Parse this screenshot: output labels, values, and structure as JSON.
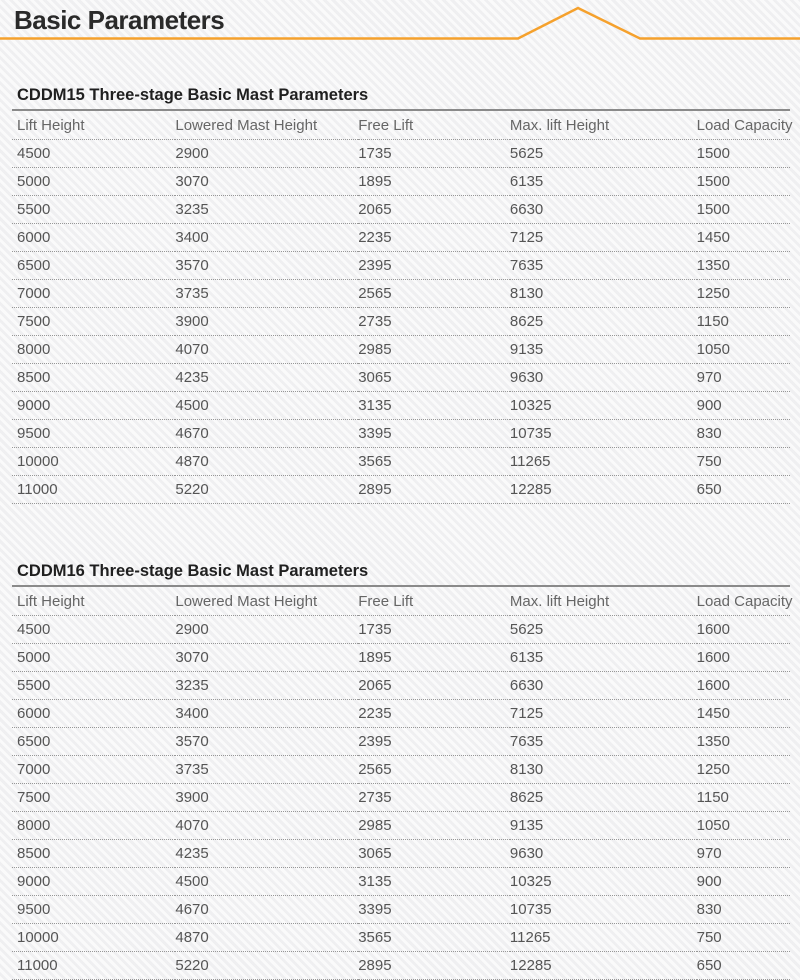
{
  "page": {
    "title": "Basic Parameters"
  },
  "colors": {
    "accent": "#F5A12D",
    "page_title_text": "#2A2A2A",
    "table_title_text": "#1F1F1F",
    "header_text": "#666666",
    "cell_text": "#555555",
    "solid_rule": "#8A8A8A",
    "dotted_rule": "#979797",
    "background": "#F6F6F7"
  },
  "columns": [
    "Lift Height",
    "Lowered Mast Height",
    "Free Lift",
    "Max. lift Height",
    "Load Capacity"
  ],
  "tables": [
    {
      "title": "CDDM15 Three-stage Basic Mast Parameters",
      "rows": [
        [
          "4500",
          "2900",
          "1735",
          "5625",
          "1500"
        ],
        [
          "5000",
          "3070",
          "1895",
          "6135",
          "1500"
        ],
        [
          "5500",
          "3235",
          "2065",
          "6630",
          "1500"
        ],
        [
          "6000",
          "3400",
          "2235",
          "7125",
          "1450"
        ],
        [
          "6500",
          "3570",
          "2395",
          "7635",
          "1350"
        ],
        [
          "7000",
          "3735",
          "2565",
          "8130",
          "1250"
        ],
        [
          "7500",
          "3900",
          "2735",
          "8625",
          "1150"
        ],
        [
          "8000",
          "4070",
          "2985",
          "9135",
          "1050"
        ],
        [
          "8500",
          "4235",
          "3065",
          "9630",
          "970"
        ],
        [
          "9000",
          "4500",
          "3135",
          "10325",
          "900"
        ],
        [
          "9500",
          "4670",
          "3395",
          "10735",
          "830"
        ],
        [
          "10000",
          "4870",
          "3565",
          "11265",
          "750"
        ],
        [
          "11000",
          "5220",
          "2895",
          "12285",
          "650"
        ]
      ]
    },
    {
      "title": "CDDM16 Three-stage Basic Mast Parameters",
      "rows": [
        [
          "4500",
          "2900",
          "1735",
          "5625",
          "1600"
        ],
        [
          "5000",
          "3070",
          "1895",
          "6135",
          "1600"
        ],
        [
          "5500",
          "3235",
          "2065",
          "6630",
          "1600"
        ],
        [
          "6000",
          "3400",
          "2235",
          "7125",
          "1450"
        ],
        [
          "6500",
          "3570",
          "2395",
          "7635",
          "1350"
        ],
        [
          "7000",
          "3735",
          "2565",
          "8130",
          "1250"
        ],
        [
          "7500",
          "3900",
          "2735",
          "8625",
          "1150"
        ],
        [
          "8000",
          "4070",
          "2985",
          "9135",
          "1050"
        ],
        [
          "8500",
          "4235",
          "3065",
          "9630",
          "970"
        ],
        [
          "9000",
          "4500",
          "3135",
          "10325",
          "900"
        ],
        [
          "9500",
          "4670",
          "3395",
          "10735",
          "830"
        ],
        [
          "10000",
          "4870",
          "3565",
          "11265",
          "750"
        ],
        [
          "11000",
          "5220",
          "2895",
          "12285",
          "650"
        ]
      ]
    }
  ]
}
